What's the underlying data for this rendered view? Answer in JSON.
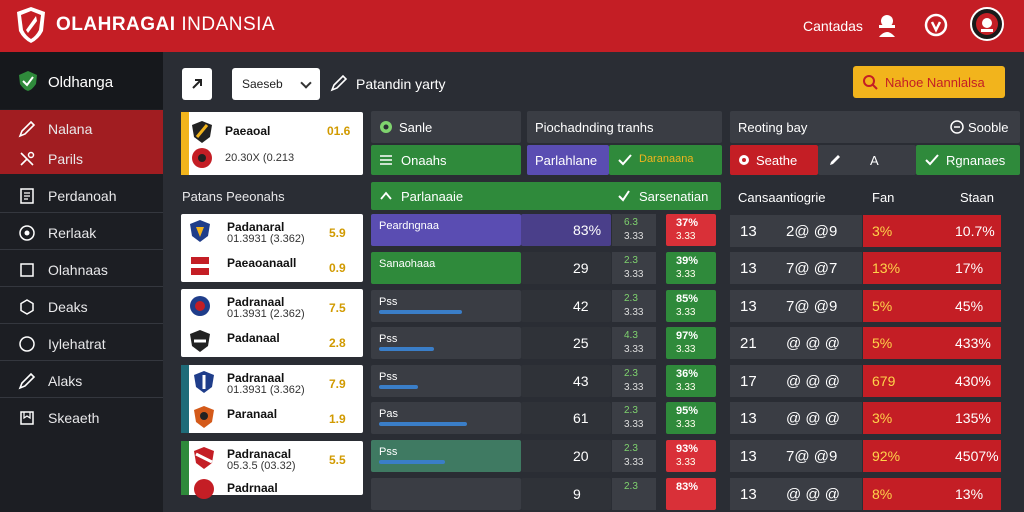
{
  "app": {
    "brand_bold": "OLAHRAGAI",
    "brand_thin": "INDANSIA",
    "contact": "Cantadas",
    "colors": {
      "topbar": "#c41e25",
      "accent_yellow": "#f2b41c",
      "green": "#2f8a3b",
      "purple": "#5a4db2"
    }
  },
  "sidebar": {
    "header": "Oldhanga",
    "items": [
      {
        "label": "Nalana",
        "icon": "pencil-icon"
      },
      {
        "label": "Parils",
        "icon": "tools-icon"
      },
      {
        "label": "Perdanoah",
        "icon": "document-icon"
      },
      {
        "label": "Rerlaak",
        "icon": "target-icon"
      },
      {
        "label": "Olahnaas",
        "icon": "square-icon"
      },
      {
        "label": "Deaks",
        "icon": "hexagon-icon"
      },
      {
        "label": "Iylehatrat",
        "icon": "circle-icon"
      },
      {
        "label": "Alaks",
        "icon": "pencil-icon"
      },
      {
        "label": "Skeaeth",
        "icon": "box-icon"
      }
    ]
  },
  "toolbar": {
    "select_value": "Saeseb",
    "project_name": "Patandin yarty",
    "action_button": "Nahoe Nannlalsa"
  },
  "left_panel": {
    "featured": {
      "title": "Paeaoal",
      "subtitle": "20.30X (0.213",
      "score": "01.6"
    },
    "section_title": "Patans Peeonahs",
    "cards": [
      {
        "title": "Padanaral",
        "subtitle": "01.3931 (3.362)",
        "score": "5.9"
      },
      {
        "title": "Paeaoanaall",
        "subtitle": "",
        "score": "0.9"
      },
      {
        "title": "Padranaal",
        "subtitle": "01.3931 (2.362)",
        "score": "7.5"
      },
      {
        "title": "Padanaal",
        "subtitle": "",
        "score": "2.8"
      },
      {
        "title": "Padranaal",
        "subtitle": "01.3931 (3.362)",
        "score": "7.9"
      },
      {
        "title": "Paranaal",
        "subtitle": "",
        "score": "1.9"
      },
      {
        "title": "Padranacal",
        "subtitle": "05.3.5 (03.32)",
        "score": "5.5"
      },
      {
        "title": "Padrnaal",
        "subtitle": "",
        "score": ""
      }
    ]
  },
  "center_panel": {
    "tab1": "Sanle",
    "tab2": "Piochadnding tranhs",
    "chip1": "Onaahs",
    "chip2": "Parlahlane",
    "chip3": "Daranaana",
    "header_left": "Parlanaaie",
    "header_right": "Sarsenatian",
    "rows": [
      {
        "label": "Peardngnaa",
        "value": "83%",
        "mid_a": "6.3",
        "mid_b": "3.33",
        "pct_a": "37%",
        "pct_b": "3.33",
        "pct_color": "red",
        "bar": 0.0
      },
      {
        "label": "Sanaohaaa",
        "value": "29",
        "mid_a": "2.3",
        "mid_b": "3.33",
        "pct_a": "39%",
        "pct_b": "3.33",
        "pct_color": "green",
        "bar": 0.0
      },
      {
        "label": "Pss",
        "value": "42",
        "mid_a": "2.3",
        "mid_b": "3.33",
        "pct_a": "85%",
        "pct_b": "3.33",
        "pct_color": "green",
        "bar": 0.75
      },
      {
        "label": "Pss",
        "value": "25",
        "mid_a": "4.3",
        "mid_b": "3.33",
        "pct_a": "97%",
        "pct_b": "3.33",
        "pct_color": "green",
        "bar": 0.5
      },
      {
        "label": "Pss",
        "value": "43",
        "mid_a": "2.3",
        "mid_b": "3.33",
        "pct_a": "36%",
        "pct_b": "3.33",
        "pct_color": "green",
        "bar": 0.35
      },
      {
        "label": "Pas",
        "value": "61",
        "mid_a": "2.3",
        "mid_b": "3.33",
        "pct_a": "95%",
        "pct_b": "3.33",
        "pct_color": "green",
        "bar": 0.8
      },
      {
        "label": "Pss",
        "value": "20",
        "mid_a": "2.3",
        "mid_b": "3.33",
        "pct_a": "93%",
        "pct_b": "3.33",
        "pct_color": "red",
        "bar": 0.6
      },
      {
        "label": "",
        "value": "9",
        "mid_a": "2.3",
        "mid_b": "",
        "pct_a": "83%",
        "pct_b": "",
        "pct_color": "red",
        "bar": 0.0
      }
    ]
  },
  "right_panel": {
    "tab1": "Reoting bay",
    "tab2": "Sooble",
    "chip1": "Seathe",
    "chip2": "A",
    "chip3": "Rgnanaes",
    "col1": "Cansaantiogrie",
    "col2": "Fan",
    "col3": "Staan",
    "rows": [
      {
        "a": "13",
        "b": "2@ @9",
        "c": "3%",
        "d": "10.7%"
      },
      {
        "a": "13",
        "b": "7@ @7",
        "c": "13%",
        "d": "17%"
      },
      {
        "a": "13",
        "b": "7@ @9",
        "c": "5%",
        "d": "45%"
      },
      {
        "a": "21",
        "b": "@ @ @",
        "c": "5%",
        "d": "433%"
      },
      {
        "a": "17",
        "b": "@ @ @",
        "c": "679",
        "d": "430%"
      },
      {
        "a": "13",
        "b": "@ @ @",
        "c": "3%",
        "d": "135%"
      },
      {
        "a": "13",
        "b": "7@ @9",
        "c": "92%",
        "d": "4507%"
      },
      {
        "a": "13",
        "b": "@ @ @",
        "c": "8%",
        "d": "13%"
      }
    ]
  }
}
